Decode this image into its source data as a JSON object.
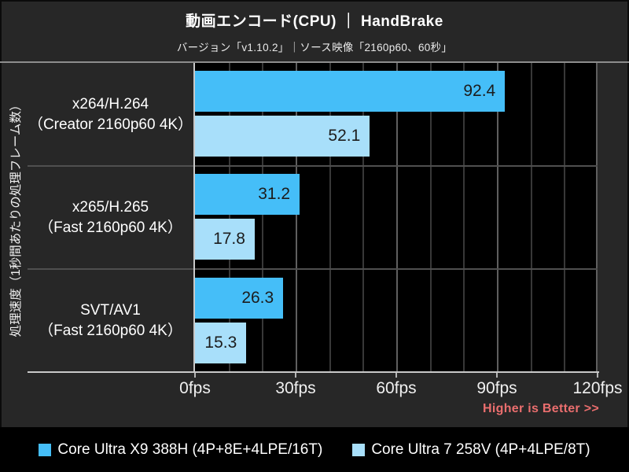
{
  "header": {
    "title": "動画エンコード(CPU) ｜ HandBrake",
    "subtitle": "バージョン「v1.10.2」｜ソース映像「2160p60、60秒」"
  },
  "note": "Higher is Better >>",
  "colors": {
    "background": "#272727",
    "plot_bg": "#000000",
    "grid_minor": "#383838",
    "grid_major": "#5f5f5f",
    "divider": "#4f4f4f",
    "axis": "#c9c9c9",
    "value_text": "#1c1c1c",
    "note": "#ea6e6e",
    "legend_bg": "#000000"
  },
  "chart_data": {
    "type": "bar",
    "orientation": "horizontal",
    "title": "動画エンコード(CPU) ｜ HandBrake",
    "subtitle": "バージョン「v1.10.2」｜ソース映像「2160p60、60秒」",
    "ylabel": "処理速度（1秒間あたりの処理フレーム数）",
    "x_unit": "fps",
    "xlim": [
      0,
      120
    ],
    "grid_step": 10,
    "major_step": 30,
    "x_ticks": [
      "0fps",
      "30fps",
      "60fps",
      "90fps",
      "120fps"
    ],
    "grid": "on",
    "legend_position": "bottom",
    "annotation": "Higher is Better >>",
    "categories": [
      {
        "name": "x264/H.264",
        "detail": "（Creator 2160p60 4K）"
      },
      {
        "name": "x265/H.265",
        "detail": "（Fast 2160p60 4K）"
      },
      {
        "name": "SVT/AV1",
        "detail": "（Fast 2160p60 4K）"
      }
    ],
    "series": [
      {
        "name": "Core Ultra X9 388H (4P+8E+4LPE/16T)",
        "color": "#45BEF8",
        "values": [
          92.4,
          31.2,
          26.3
        ]
      },
      {
        "name": "Core Ultra 7 258V (4P+4LPE/8T)",
        "color": "#A8DFFA",
        "values": [
          52.1,
          17.8,
          15.3
        ]
      }
    ]
  }
}
